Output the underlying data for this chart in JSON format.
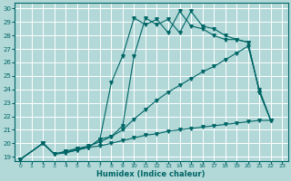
{
  "xlabel": "Humidex (Indice chaleur)",
  "xlim": [
    -0.5,
    23.5
  ],
  "ylim": [
    18.7,
    30.4
  ],
  "xticks": [
    0,
    1,
    2,
    3,
    4,
    5,
    6,
    7,
    8,
    9,
    10,
    11,
    12,
    13,
    14,
    15,
    16,
    17,
    18,
    19,
    20,
    21,
    22,
    23
  ],
  "yticks": [
    19,
    20,
    21,
    22,
    23,
    24,
    25,
    26,
    27,
    28,
    29,
    30
  ],
  "bg_color": "#b2d8d8",
  "grid_color": "#d0e8e8",
  "line_color": "#006666",
  "lines": [
    {
      "x": [
        0,
        2,
        3,
        4,
        5,
        6,
        7,
        8,
        9,
        10,
        11,
        12,
        13,
        14,
        15,
        16,
        17,
        18,
        19,
        20,
        21,
        22
      ],
      "y": [
        18.8,
        20.0,
        19.2,
        19.4,
        19.6,
        19.7,
        19.8,
        20.0,
        20.2,
        20.4,
        20.6,
        20.7,
        20.9,
        21.0,
        21.1,
        21.2,
        21.3,
        21.4,
        21.5,
        21.6,
        21.7,
        21.7
      ]
    },
    {
      "x": [
        0,
        2,
        3,
        4,
        5,
        6,
        7,
        8,
        9,
        10,
        11,
        12,
        13,
        14,
        15,
        16,
        17,
        18,
        19,
        20,
        21,
        22
      ],
      "y": [
        18.8,
        20.0,
        19.2,
        19.4,
        19.6,
        19.8,
        20.1,
        20.5,
        21.0,
        21.8,
        22.5,
        23.2,
        23.8,
        24.3,
        24.8,
        25.3,
        25.7,
        26.2,
        26.7,
        27.2,
        24.0,
        21.7
      ]
    },
    {
      "x": [
        0,
        2,
        3,
        4,
        5,
        6,
        7,
        8,
        9,
        10,
        11,
        12,
        13,
        14,
        15,
        16,
        17,
        18,
        19,
        20,
        21,
        22
      ],
      "y": [
        18.8,
        20.0,
        19.2,
        19.3,
        19.5,
        19.7,
        20.3,
        24.5,
        26.5,
        29.3,
        28.8,
        29.2,
        28.2,
        29.8,
        28.7,
        28.5,
        28.0,
        27.7,
        27.7,
        27.5,
        23.8,
        21.7
      ]
    },
    {
      "x": [
        0,
        2,
        3,
        4,
        5,
        6,
        7,
        8,
        9,
        10,
        11,
        12,
        13,
        14,
        15,
        16,
        17,
        18,
        19,
        20,
        21,
        22
      ],
      "y": [
        18.8,
        20.0,
        19.2,
        19.3,
        19.5,
        19.7,
        20.3,
        20.5,
        21.3,
        26.5,
        29.3,
        28.8,
        29.2,
        28.2,
        29.8,
        28.7,
        28.5,
        28.0,
        27.7,
        27.5,
        23.8,
        21.7
      ]
    }
  ]
}
